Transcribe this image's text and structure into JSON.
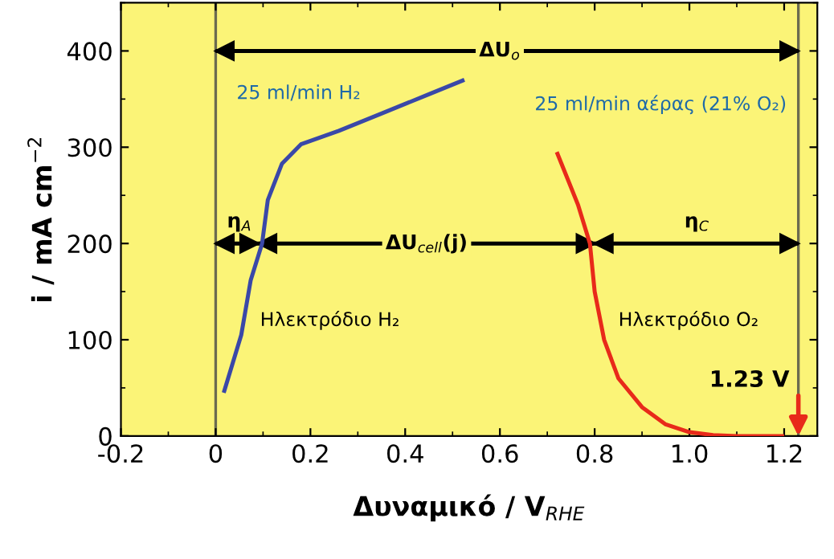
{
  "chart_data": {
    "type": "line",
    "xlabel": "Δυναμικό / V$_{RHE}$",
    "ylabel": "i / mA cm$^{−2}$",
    "xlim": [
      -0.2,
      1.27
    ],
    "ylim": [
      0,
      450
    ],
    "xticks": [
      -0.2,
      0,
      0.2,
      0.4,
      0.6,
      0.8,
      {
        "value": 1.0,
        "label": "1.0"
      },
      1.2
    ],
    "yticks": [
      0,
      100,
      200,
      300,
      400
    ],
    "grid": false,
    "marker": "none",
    "line_style": "solid",
    "series": [
      {
        "color": "#3a48a8",
        "x": [
          0.017,
          0.054,
          0.074,
          0.098,
          0.11,
          0.14,
          0.18,
          0.26,
          0.35,
          0.45,
          0.525
        ],
        "values": [
          45,
          105,
          162,
          200,
          245,
          283,
          303,
          317,
          335,
          355,
          370
        ]
      },
      {
        "color": "#e82a1a",
        "x": [
          0.72,
          0.765,
          0.79,
          0.8,
          0.82,
          0.85,
          0.9,
          0.95,
          1.0,
          1.05,
          1.1,
          1.2
        ],
        "values": [
          295,
          240,
          200,
          150,
          100,
          60,
          30,
          12,
          4,
          1,
          0,
          0
        ]
      },
      {
        "color": "#000000",
        "x": [
          0,
          1.23
        ],
        "values": [
          400,
          400
        ]
      },
      {
        "color": "#000000",
        "x": [
          0,
          0.09,
          0.8,
          1.23
        ],
        "values": [
          200,
          200,
          200,
          200
        ]
      }
    ],
    "ref_lines": [
      {
        "axis": "x",
        "value": 0,
        "label": null,
        "color": "#6b6b50"
      },
      {
        "axis": "x",
        "value": 1.23,
        "label": null,
        "color": "#6b6b50"
      }
    ],
    "annotations": [
      "ΔU$_{o}$",
      "η$_{A}$",
      "ΔU$_{cell}$(j)",
      "η$_{C}$",
      "25 ml/min H₂",
      "25 ml/min αέρας (21% O₂)",
      "Ηλεκτρόδιο H₂",
      "Ηλεκτρόδιο O₂",
      {
        "text": "1.23 V",
        "x": 1.23,
        "y": 0
      }
    ]
  }
}
